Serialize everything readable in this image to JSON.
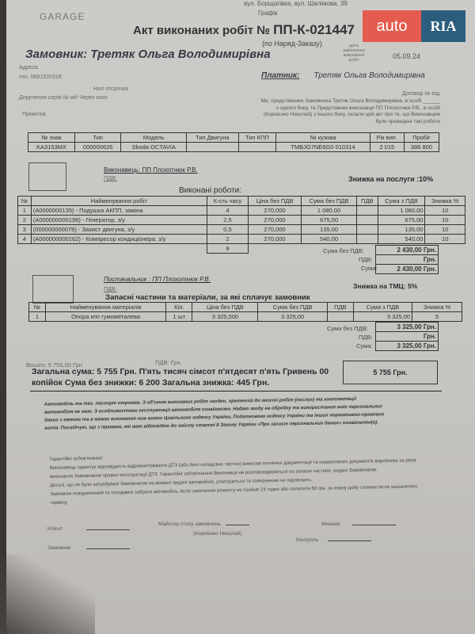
{
  "header": {
    "logo": "GARAGE",
    "address": "вул. Борщагівка, вул. Шалімова, 39",
    "grafik": "Графік",
    "title_prefix": "Акт виконаних робіт №",
    "act_number": "ПП-К-021447",
    "subtitle": "(по Наряд-Заказу)",
    "date_label": "дата закінчення виконання робіт",
    "date": "05.09.24"
  },
  "customer": {
    "label": "Замовник:",
    "name": "Третяк Ольга Володимирівна",
    "address_label": "Адреса",
    "phone": "тел. 0681520318",
    "deferral": "Нал отсрочка",
    "power_of_attorney": "Доручення серія  №  від  Через кого",
    "note_label": "Примітка"
  },
  "payer": {
    "label": "Платник:",
    "name": "Третяк Ольга Володимирівна"
  },
  "contract": {
    "number": "Договор №   від",
    "text": "Ми, представники Замовника  Третяк Ольга Володимирівна, в особі ______ з одного боку, та  Представник виконавця ПП Плохотнюк Р.В.,  в особі  (Корнієнко Николай) з іншого боку, склали цей акт про те, що Виконавцем були проведені такі роботи"
  },
  "vehicle": {
    "headers": [
      "№ знак",
      "Тип",
      "Модель",
      "Тип Двигуна",
      "Тип КПП",
      "№ кузова",
      "Рік вип.",
      "Пробіг"
    ],
    "values": [
      "KA3153MX",
      "000000626",
      "Skoda OCTAVIA",
      "",
      "",
      "TMBJG7NE6G0 010314",
      "2 015",
      "386 800"
    ]
  },
  "works": {
    "executor": "Виконавець:  ПП Плохотнюк Р.В.",
    "vat": "ПДВ:",
    "discount": "Знижка на послуги :10%",
    "title": "Виконані роботи:",
    "headers": [
      "№",
      "Найменування робіт",
      "К-сть часу",
      "Ціна без ПДВ",
      "Сума без ПДВ",
      "ПДВ",
      "Сума з ПДВ",
      "Знижка %"
    ],
    "rows": [
      [
        "1",
        "(A0000000135) - Подушка АКПП, заміна",
        "4",
        "270,000",
        "1 080,00",
        "",
        "1 080,00",
        "10"
      ],
      [
        "2",
        "(A000000000199) - Генератор, з/у",
        "2,5",
        "270,000",
        "675,00",
        "",
        "675,00",
        "10"
      ],
      [
        "3",
        "(000000000078) -  Захист двигуна, з/у",
        "0,5",
        "270,000",
        "135,00",
        "",
        "135,00",
        "10"
      ],
      [
        "4",
        "(A000000000162) -  Компресор кондиціонера, з/у",
        "2",
        "270,000",
        "540,00",
        "",
        "540,00",
        "10"
      ]
    ],
    "hours_total": "9",
    "sum_no_vat_label": "Сума без ПДВ:",
    "sum_no_vat": "2 430,00 Грн.",
    "vat_label": "ПДВ:",
    "vat_value": "Грн.",
    "sum_label": "Сума:",
    "sum": "2 430,00 Грн."
  },
  "parts": {
    "supplier": "Постачальник :  ПП Плохотнюк Р.В.",
    "vat": "ПДВ:",
    "discount": "Знижка на ТМЦ: 5%",
    "title": "Запасні частини та матеріали, за які сплачує замовник",
    "headers": [
      "№",
      "Найменування матеріалів",
      "Кіл.",
      "Ціна без ПДВ",
      "Сума без ПДВ",
      "ПДВ",
      "Сума з ПДВ",
      "Знижка %"
    ],
    "rows": [
      [
        "1",
        "Опора кпп гумометалева",
        "1 шт",
        "3 325,000",
        "3 325,00",
        "",
        "3 325,00",
        "5"
      ]
    ],
    "sum_no_vat_label": "Сума без ПДВ:",
    "sum_no_vat": "3 325,00 Грн.",
    "vat_label": "ПДВ:",
    "vat_value": "Грн.",
    "sum_label": "Сума:",
    "sum": "3 325,00 Грн."
  },
  "totals": {
    "all": "Всього: 5 755,00 Грн",
    "vat": "ПДВ:  Грн.",
    "line1": "Загальна сума:  5 755 Грн.  П'ять тисяч сімсот п'ятдесят п'ять Гривень 00",
    "line2": "копійок     Сума без знижки: 6 200  Загальна знижка: 445 Грн.",
    "box": "5 755 Грн."
  },
  "consent": "Автомобіль та тех. паспорт отримав. З об'ємом виконаних робіт згоден, претензій до якості робіт (послуг) та комплектації автомобіля не маю. З особливостями експлуатації автомобіля ознайомлен. Надаю згоду на обробку та використання   моїх персональних даних з метою та в межах виконання ним вимог Цивільного кодексу України, Податкового кодексу України та інших нормативно-правових актів. Посвідчую, що з правами, які маю відповідно до змісту статті 8 Закону України «Про захист персональних даних» ознайомлен(а).",
  "guarantee": [
    "Гарантійні зобов'язання:",
    "Виконавець гарантує відповідність відремонтованого ДТЗ (або його складових частин) вимогам технічної документації та нормативних документів виробника за умов виконання Замовником правил експлуатації ДТЗ. Гарантійні зобов'язання Виконавця не розповсюджуються на запасні частини, надані Замовником.",
    "Деталі, що не були затребувані Замовником на момент видачі автомобіля, утилізуються та поверненню не підлягають.",
    "Замовник повідомлений та погодився забрати автомобіль після закінчення ремонту не пізніше 24 годин або оплатити 60 грн. за кожну добу стоянки після зазначеного терміну."
  ],
  "signatures": {
    "client": "Клієнт",
    "orderer": "Замовник",
    "master": "Майстер столу замовлень",
    "master_name": "(Корнієнко Николай)",
    "mechanic": "Механік",
    "control": "Контроль"
  },
  "watermark": {
    "auto": "auto",
    "ria": "RIA",
    "com": ".com",
    "colors": {
      "auto": "#e45b4f",
      "ria": "#2b5d7d"
    }
  }
}
